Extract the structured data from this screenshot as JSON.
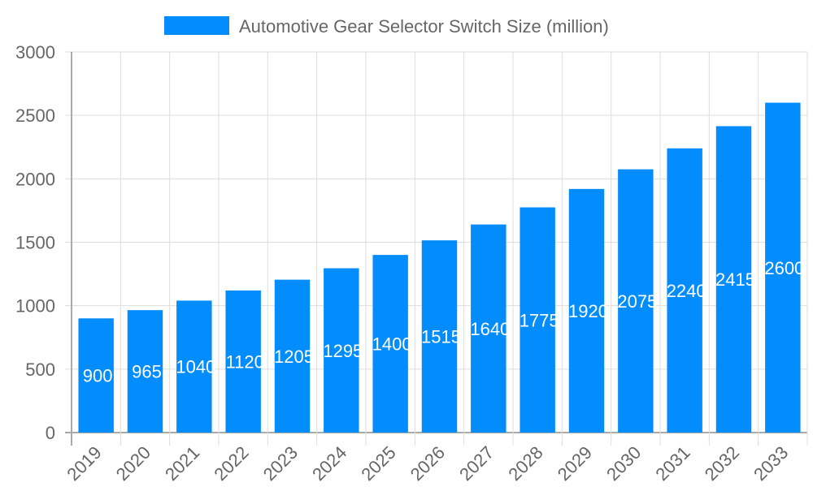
{
  "chart_data": {
    "type": "bar",
    "title": "",
    "xlabel": "",
    "ylabel": "",
    "categories": [
      "2019",
      "2020",
      "2021",
      "2022",
      "2023",
      "2024",
      "2025",
      "2026",
      "2027",
      "2028",
      "2029",
      "2030",
      "2031",
      "2032",
      "2033"
    ],
    "series": [
      {
        "name": "Automotive Gear Selector Switch Size (million)",
        "values": [
          900,
          965,
          1040,
          1120,
          1205,
          1295,
          1400,
          1515,
          1640,
          1775,
          1920,
          2075,
          2240,
          2415,
          2600
        ],
        "color": "#038cfc"
      }
    ],
    "ylim": [
      0,
      3000
    ],
    "yticks": [
      0,
      500,
      1000,
      1500,
      2000,
      2500,
      3000
    ],
    "grid": true,
    "legend": "top-center",
    "data_labels": true
  }
}
